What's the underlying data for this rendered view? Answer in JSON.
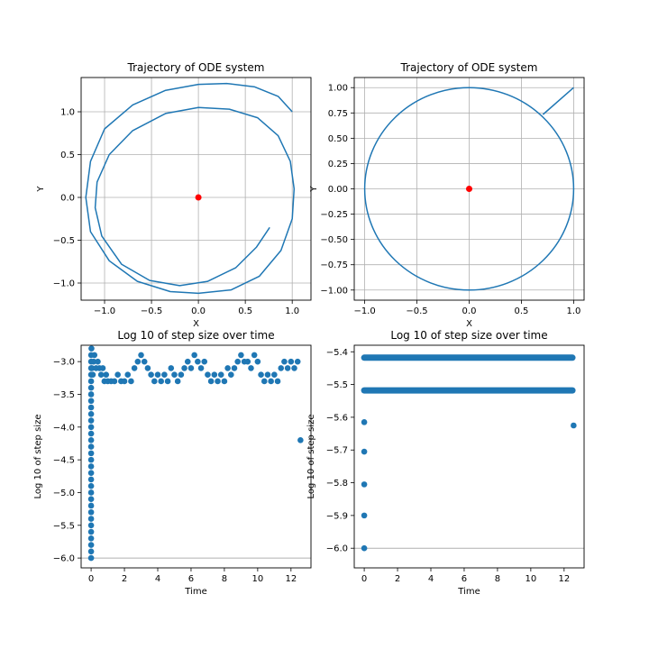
{
  "chart_data": [
    {
      "type": "line",
      "title": "Trajectory of ODE system",
      "xlabel": "X",
      "ylabel": "Y",
      "xlim": [
        -1.25,
        1.2
      ],
      "ylim": [
        -1.2,
        1.4
      ],
      "xticks": [
        -1.0,
        -0.5,
        0.0,
        0.5,
        1.0
      ],
      "xtick_labels": [
        "−1.0",
        "−0.5",
        "0.0",
        "0.5",
        "1.0"
      ],
      "yticks": [
        -1.0,
        -0.5,
        0.0,
        0.5,
        1.0
      ],
      "ytick_labels": [
        "−1.0",
        "−0.5",
        "0.0",
        "0.5",
        "1.0"
      ],
      "grid": true,
      "series": [
        {
          "kind": "line",
          "color": "#1f77b4",
          "x": [
            1.0,
            0.85,
            0.6,
            0.3,
            0.0,
            -0.35,
            -0.7,
            -1.0,
            -1.15,
            -1.2,
            -1.15,
            -0.95,
            -0.65,
            -0.3,
            0.0,
            0.35,
            0.65,
            0.88,
            1.0,
            1.02,
            0.98,
            0.85,
            0.63,
            0.33,
            0.0,
            -0.35,
            -0.7,
            -0.95,
            -1.08,
            -1.1,
            -1.03,
            -0.82,
            -0.52,
            -0.2,
            0.1,
            0.4,
            0.62,
            0.76
          ],
          "y": [
            1.0,
            1.18,
            1.29,
            1.33,
            1.32,
            1.25,
            1.08,
            0.8,
            0.42,
            0.0,
            -0.4,
            -0.74,
            -0.98,
            -1.1,
            -1.12,
            -1.08,
            -0.92,
            -0.62,
            -0.25,
            0.1,
            0.42,
            0.72,
            0.93,
            1.03,
            1.05,
            0.98,
            0.78,
            0.5,
            0.18,
            -0.12,
            -0.45,
            -0.78,
            -0.97,
            -1.03,
            -0.98,
            -0.82,
            -0.58,
            -0.35
          ]
        },
        {
          "kind": "point",
          "color": "#ff0000",
          "x": [
            0.0
          ],
          "y": [
            0.0
          ]
        }
      ]
    },
    {
      "type": "line",
      "title": "Trajectory of ODE system",
      "xlabel": "X",
      "ylabel": "Y",
      "xlim": [
        -1.1,
        1.1
      ],
      "ylim": [
        -1.1,
        1.1
      ],
      "xticks": [
        -1.0,
        -0.5,
        0.0,
        0.5,
        1.0
      ],
      "xtick_labels": [
        "−1.0",
        "−0.5",
        "0.0",
        "0.5",
        "1.0"
      ],
      "yticks": [
        -1.0,
        -0.75,
        -0.5,
        -0.25,
        0.0,
        0.25,
        0.5,
        0.75,
        1.0
      ],
      "ytick_labels": [
        "−1.00",
        "−0.75",
        "−0.50",
        "−0.25",
        "0.00",
        "0.25",
        "0.50",
        "0.75",
        "1.00"
      ],
      "grid": true,
      "series": [
        {
          "kind": "line",
          "color": "#1f77b4",
          "x": [
            1.0,
            0.707
          ],
          "y": [
            1.0,
            0.735
          ]
        },
        {
          "kind": "circle",
          "color": "#1f77b4",
          "cx": 0.0,
          "cy": 0.0,
          "r": 1.0
        },
        {
          "kind": "point",
          "color": "#ff0000",
          "x": [
            0.0
          ],
          "y": [
            0.0
          ]
        }
      ]
    },
    {
      "type": "scatter",
      "title": "Log 10 of step size over time",
      "xlabel": "Time",
      "ylabel": "Log 10 of step size",
      "xlim": [
        -0.6,
        13.2
      ],
      "ylim": [
        -6.15,
        -2.75
      ],
      "xticks": [
        0,
        2,
        4,
        6,
        8,
        10,
        12
      ],
      "xtick_labels": [
        "0",
        "2",
        "4",
        "6",
        "8",
        "10",
        "12"
      ],
      "yticks": [
        -6.0,
        -5.5,
        -5.0,
        -4.5,
        -4.0,
        -3.5,
        -3.0
      ],
      "ytick_labels": [
        "−6.0",
        "−5.5",
        "−5.0",
        "−4.5",
        "−4.0",
        "−3.5",
        "−3.0"
      ],
      "grid": false,
      "hline": -6.0,
      "series": [
        {
          "kind": "scatter",
          "color": "#1f77b4",
          "points": [
            [
              0,
              -6.0
            ],
            [
              0,
              -5.9
            ],
            [
              0,
              -5.8
            ],
            [
              0,
              -5.7
            ],
            [
              0,
              -5.6
            ],
            [
              0,
              -5.5
            ],
            [
              0,
              -5.4
            ],
            [
              0,
              -5.3
            ],
            [
              0,
              -5.2
            ],
            [
              0,
              -5.1
            ],
            [
              0,
              -5.0
            ],
            [
              0,
              -4.9
            ],
            [
              0,
              -4.8
            ],
            [
              0,
              -4.7
            ],
            [
              0,
              -4.6
            ],
            [
              0,
              -4.5
            ],
            [
              0,
              -4.4
            ],
            [
              0,
              -4.3
            ],
            [
              0,
              -4.2
            ],
            [
              0,
              -4.1
            ],
            [
              0,
              -4.0
            ],
            [
              0,
              -3.9
            ],
            [
              0,
              -3.8
            ],
            [
              0,
              -3.7
            ],
            [
              0,
              -3.6
            ],
            [
              0,
              -3.5
            ],
            [
              0,
              -3.4
            ],
            [
              0,
              -3.3
            ],
            [
              0,
              -3.2
            ],
            [
              0,
              -3.1
            ],
            [
              0,
              -3.0
            ],
            [
              0,
              -2.9
            ],
            [
              0.02,
              -2.8
            ],
            [
              0.05,
              -3.1
            ],
            [
              0.1,
              -3.2
            ],
            [
              0.15,
              -3.0
            ],
            [
              0.2,
              -2.9
            ],
            [
              0.3,
              -3.1
            ],
            [
              0.4,
              -3.0
            ],
            [
              0.5,
              -3.1
            ],
            [
              0.6,
              -3.2
            ],
            [
              0.7,
              -3.1
            ],
            [
              0.8,
              -3.3
            ],
            [
              0.9,
              -3.2
            ],
            [
              1.0,
              -3.3
            ],
            [
              1.2,
              -3.3
            ],
            [
              1.4,
              -3.3
            ],
            [
              1.6,
              -3.2
            ],
            [
              1.8,
              -3.3
            ],
            [
              2.0,
              -3.3
            ],
            [
              2.2,
              -3.2
            ],
            [
              2.4,
              -3.3
            ],
            [
              2.6,
              -3.1
            ],
            [
              2.8,
              -3.0
            ],
            [
              3.0,
              -2.9
            ],
            [
              3.2,
              -3.0
            ],
            [
              3.4,
              -3.1
            ],
            [
              3.6,
              -3.2
            ],
            [
              3.8,
              -3.3
            ],
            [
              4.0,
              -3.2
            ],
            [
              4.2,
              -3.3
            ],
            [
              4.4,
              -3.2
            ],
            [
              4.6,
              -3.3
            ],
            [
              4.8,
              -3.1
            ],
            [
              5.0,
              -3.2
            ],
            [
              5.2,
              -3.3
            ],
            [
              5.4,
              -3.2
            ],
            [
              5.6,
              -3.1
            ],
            [
              5.8,
              -3.0
            ],
            [
              6.0,
              -3.1
            ],
            [
              6.2,
              -2.9
            ],
            [
              6.4,
              -3.0
            ],
            [
              6.6,
              -3.1
            ],
            [
              6.8,
              -3.0
            ],
            [
              7.0,
              -3.2
            ],
            [
              7.2,
              -3.3
            ],
            [
              7.4,
              -3.2
            ],
            [
              7.6,
              -3.3
            ],
            [
              7.8,
              -3.2
            ],
            [
              8.0,
              -3.3
            ],
            [
              8.2,
              -3.1
            ],
            [
              8.4,
              -3.2
            ],
            [
              8.6,
              -3.1
            ],
            [
              8.8,
              -3.0
            ],
            [
              9.0,
              -2.9
            ],
            [
              9.2,
              -3.0
            ],
            [
              9.4,
              -3.0
            ],
            [
              9.6,
              -3.1
            ],
            [
              9.8,
              -2.9
            ],
            [
              10.0,
              -3.0
            ],
            [
              10.2,
              -3.2
            ],
            [
              10.4,
              -3.3
            ],
            [
              10.6,
              -3.2
            ],
            [
              10.8,
              -3.3
            ],
            [
              11.0,
              -3.2
            ],
            [
              11.2,
              -3.3
            ],
            [
              11.4,
              -3.1
            ],
            [
              11.6,
              -3.0
            ],
            [
              11.8,
              -3.1
            ],
            [
              12.0,
              -3.0
            ],
            [
              12.2,
              -3.1
            ],
            [
              12.4,
              -3.0
            ],
            [
              12.57,
              -4.2
            ]
          ]
        }
      ]
    },
    {
      "type": "scatter",
      "title": "Log 10 of step size over time",
      "xlabel": "Time",
      "ylabel": "Log 10 of step size",
      "xlim": [
        -0.6,
        13.2
      ],
      "ylim": [
        -6.06,
        -5.38
      ],
      "xticks": [
        0,
        2,
        4,
        6,
        8,
        10,
        12
      ],
      "xtick_labels": [
        "0",
        "2",
        "4",
        "6",
        "8",
        "10",
        "12"
      ],
      "yticks": [
        -6.0,
        -5.9,
        -5.8,
        -5.7,
        -5.6,
        -5.5,
        -5.4
      ],
      "ytick_labels": [
        "−6.0",
        "−5.9",
        "−5.8",
        "−5.7",
        "−5.6",
        "−5.5",
        "−5.4"
      ],
      "grid": false,
      "hline": -6.0,
      "series": [
        {
          "kind": "scatter",
          "color": "#1f77b4",
          "bands": [
            {
              "y": -5.418,
              "x_from": 0.0,
              "x_to": 12.5
            },
            {
              "y": -5.518,
              "x_from": 0.0,
              "x_to": 12.5
            }
          ],
          "points": [
            [
              0,
              -6.0
            ],
            [
              0,
              -5.9
            ],
            [
              0,
              -5.805
            ],
            [
              0,
              -5.705
            ],
            [
              0,
              -5.615
            ],
            [
              12.57,
              -5.625
            ]
          ]
        }
      ]
    }
  ]
}
